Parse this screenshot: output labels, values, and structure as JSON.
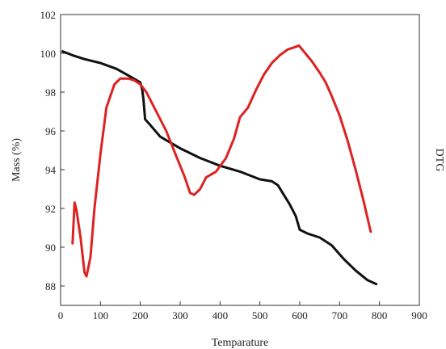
{
  "chart_data": {
    "type": "line",
    "xlabel": "Temparature",
    "ylabel_left": "Mass (%)",
    "ylabel_right": "DTG",
    "xlim": [
      0,
      900
    ],
    "ylim": [
      87,
      102
    ],
    "x_ticks": [
      "0",
      "100",
      "200",
      "300",
      "400",
      "500",
      "600",
      "700",
      "800",
      "900"
    ],
    "y_ticks": [
      "88",
      "90",
      "92",
      "94",
      "96",
      "98",
      "100",
      "102"
    ],
    "grid": false,
    "series": [
      {
        "color": "#111111",
        "points": [
          [
            5,
            100.1
          ],
          [
            30,
            99.9
          ],
          [
            60,
            99.7
          ],
          [
            100,
            99.5
          ],
          [
            140,
            99.2
          ],
          [
            175,
            98.8
          ],
          [
            200,
            98.5
          ],
          [
            205,
            98.1
          ],
          [
            208,
            97.6
          ],
          [
            212,
            96.6
          ],
          [
            225,
            96.3
          ],
          [
            250,
            95.7
          ],
          [
            300,
            95.1
          ],
          [
            350,
            94.6
          ],
          [
            400,
            94.2
          ],
          [
            450,
            93.9
          ],
          [
            500,
            93.5
          ],
          [
            530,
            93.4
          ],
          [
            545,
            93.2
          ],
          [
            560,
            92.7
          ],
          [
            575,
            92.2
          ],
          [
            590,
            91.6
          ],
          [
            600,
            90.9
          ],
          [
            620,
            90.7
          ],
          [
            650,
            90.5
          ],
          [
            680,
            90.1
          ],
          [
            710,
            89.4
          ],
          [
            740,
            88.8
          ],
          [
            770,
            88.3
          ],
          [
            792,
            88.1
          ]
        ]
      },
      {
        "color": "#dd2222",
        "points": [
          [
            30,
            90.2
          ],
          [
            35,
            92.3
          ],
          [
            40,
            91.9
          ],
          [
            50,
            90.5
          ],
          [
            60,
            88.7
          ],
          [
            65,
            88.5
          ],
          [
            75,
            89.5
          ],
          [
            85,
            92.0
          ],
          [
            100,
            94.8
          ],
          [
            115,
            97.2
          ],
          [
            135,
            98.4
          ],
          [
            150,
            98.7
          ],
          [
            170,
            98.7
          ],
          [
            185,
            98.6
          ],
          [
            200,
            98.4
          ],
          [
            215,
            98.0
          ],
          [
            240,
            97.0
          ],
          [
            265,
            96.0
          ],
          [
            290,
            94.7
          ],
          [
            310,
            93.7
          ],
          [
            325,
            92.8
          ],
          [
            335,
            92.7
          ],
          [
            350,
            93.0
          ],
          [
            365,
            93.6
          ],
          [
            390,
            93.9
          ],
          [
            415,
            94.6
          ],
          [
            435,
            95.6
          ],
          [
            450,
            96.7
          ],
          [
            470,
            97.2
          ],
          [
            490,
            98.1
          ],
          [
            510,
            98.9
          ],
          [
            530,
            99.5
          ],
          [
            550,
            99.9
          ],
          [
            570,
            100.2
          ],
          [
            585,
            100.3
          ],
          [
            598,
            100.4
          ],
          [
            610,
            100.1
          ],
          [
            630,
            99.6
          ],
          [
            650,
            99.0
          ],
          [
            665,
            98.5
          ],
          [
            680,
            97.8
          ],
          [
            700,
            96.8
          ],
          [
            720,
            95.5
          ],
          [
            740,
            94.0
          ],
          [
            760,
            92.4
          ],
          [
            778,
            90.8
          ]
        ]
      }
    ]
  }
}
